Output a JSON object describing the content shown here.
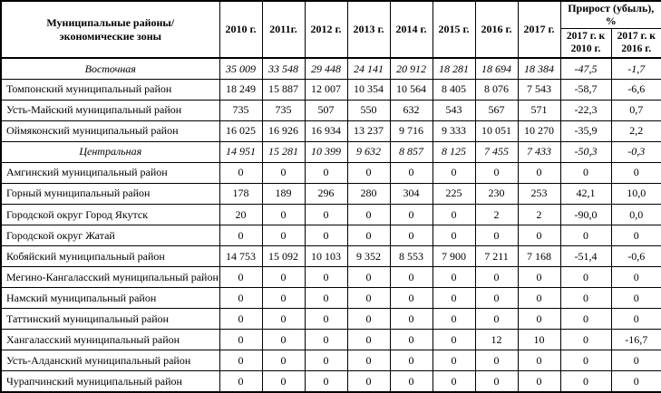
{
  "table": {
    "header": {
      "region_line1": "Муниципальные районы/",
      "region_line2": "экономические зоны",
      "years": [
        "2010 г.",
        "2011г.",
        "2012 г.",
        "2013 г.",
        "2014 г.",
        "2015 г.",
        "2016 г.",
        "2017 г."
      ],
      "growth_group": "Прирост (убыль), %",
      "growth_cols": [
        {
          "line1": "2017 г. к",
          "line2": "2010 г."
        },
        {
          "line1": "2017 г. к",
          "line2": "2016 г."
        }
      ]
    },
    "rows": [
      {
        "name": "Восточная",
        "type": "zone",
        "values": [
          "35 009",
          "33 548",
          "29 448",
          "24 141",
          "20 912",
          "18 281",
          "18 694",
          "18 384",
          "-47,5",
          "-1,7"
        ]
      },
      {
        "name": "Томпонский муниципальный район",
        "type": "district",
        "values": [
          "18 249",
          "15 887",
          "12 007",
          "10 354",
          "10 564",
          "8 405",
          "8 076",
          "7 543",
          "-58,7",
          "-6,6"
        ]
      },
      {
        "name": "Усть-Майский муниципальный район",
        "type": "district",
        "values": [
          "735",
          "735",
          "507",
          "550",
          "632",
          "543",
          "567",
          "571",
          "-22,3",
          "0,7"
        ]
      },
      {
        "name": "Оймяконский муниципальный район",
        "type": "district",
        "values": [
          "16 025",
          "16 926",
          "16 934",
          "13 237",
          "9 716",
          "9 333",
          "10 051",
          "10 270",
          "-35,9",
          "2,2"
        ]
      },
      {
        "name": "Центральная",
        "type": "zone",
        "values": [
          "14 951",
          "15 281",
          "10 399",
          "9 632",
          "8 857",
          "8 125",
          "7 455",
          "7 433",
          "-50,3",
          "-0,3"
        ]
      },
      {
        "name": "Амгинский муниципальный район",
        "type": "district",
        "values": [
          "0",
          "0",
          "0",
          "0",
          "0",
          "0",
          "0",
          "0",
          "0",
          "0"
        ]
      },
      {
        "name": "Горный муниципальный район",
        "type": "district",
        "values": [
          "178",
          "189",
          "296",
          "280",
          "304",
          "225",
          "230",
          "253",
          "42,1",
          "10,0"
        ]
      },
      {
        "name": "Городской округ Город Якутск",
        "type": "district",
        "values": [
          "20",
          "0",
          "0",
          "0",
          "0",
          "0",
          "2",
          "2",
          "-90,0",
          "0,0"
        ]
      },
      {
        "name": "Городской округ Жатай",
        "type": "district",
        "values": [
          "0",
          "0",
          "0",
          "0",
          "0",
          "0",
          "0",
          "0",
          "0",
          "0"
        ]
      },
      {
        "name": "Кобяйский муниципальный район",
        "type": "district",
        "values": [
          "14 753",
          "15 092",
          "10 103",
          "9 352",
          "8 553",
          "7 900",
          "7 211",
          "7 168",
          "-51,4",
          "-0,6"
        ]
      },
      {
        "name": "Мегино-Кангаласский муниципальный район",
        "type": "district",
        "values": [
          "0",
          "0",
          "0",
          "0",
          "0",
          "0",
          "0",
          "0",
          "0",
          "0"
        ]
      },
      {
        "name": "Намский муниципальный район",
        "type": "district",
        "values": [
          "0",
          "0",
          "0",
          "0",
          "0",
          "0",
          "0",
          "0",
          "0",
          "0"
        ]
      },
      {
        "name": "Таттинский муниципальный район",
        "type": "district",
        "values": [
          "0",
          "0",
          "0",
          "0",
          "0",
          "0",
          "0",
          "0",
          "0",
          "0"
        ]
      },
      {
        "name": "Хангаласский муниципальный район",
        "type": "district",
        "values": [
          "0",
          "0",
          "0",
          "0",
          "0",
          "0",
          "12",
          "10",
          "0",
          "-16,7"
        ]
      },
      {
        "name": "Усть-Алданский муниципальный район",
        "type": "district",
        "values": [
          "0",
          "0",
          "0",
          "0",
          "0",
          "0",
          "0",
          "0",
          "0",
          "0"
        ]
      },
      {
        "name": "Чурапчинский муниципальный район",
        "type": "district",
        "values": [
          "0",
          "0",
          "0",
          "0",
          "0",
          "0",
          "0",
          "0",
          "0",
          "0"
        ]
      }
    ]
  }
}
